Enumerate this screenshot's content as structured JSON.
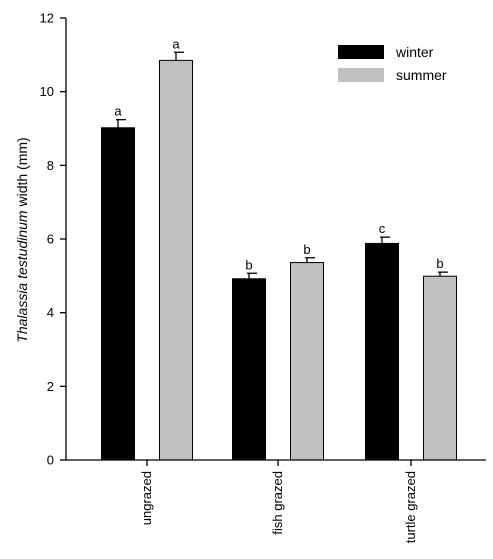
{
  "chart_data": {
    "type": "bar",
    "title": "",
    "xlabel": "",
    "ylabel": {
      "species": "Thalassia testudinum",
      "rest": " width (mm)"
    },
    "ylim": [
      0,
      12
    ],
    "yticks": [
      "0",
      "2",
      "4",
      "6",
      "8",
      "10",
      "12"
    ],
    "categories": [
      "ungrazed",
      "fish grazed",
      "turtle grazed"
    ],
    "series": [
      {
        "name": "winter",
        "color": "#000000",
        "values": [
          9.02,
          4.92,
          5.88
        ],
        "errors": [
          0.22,
          0.15,
          0.17
        ],
        "letters": [
          "a",
          "b",
          "c"
        ]
      },
      {
        "name": "summer",
        "color": "#c0c0c0",
        "values": [
          10.85,
          5.36,
          4.99
        ],
        "errors": [
          0.22,
          0.13,
          0.11
        ],
        "letters": [
          "a",
          "b",
          "b"
        ]
      }
    ],
    "legend_position": "top-right",
    "grid": false
  }
}
